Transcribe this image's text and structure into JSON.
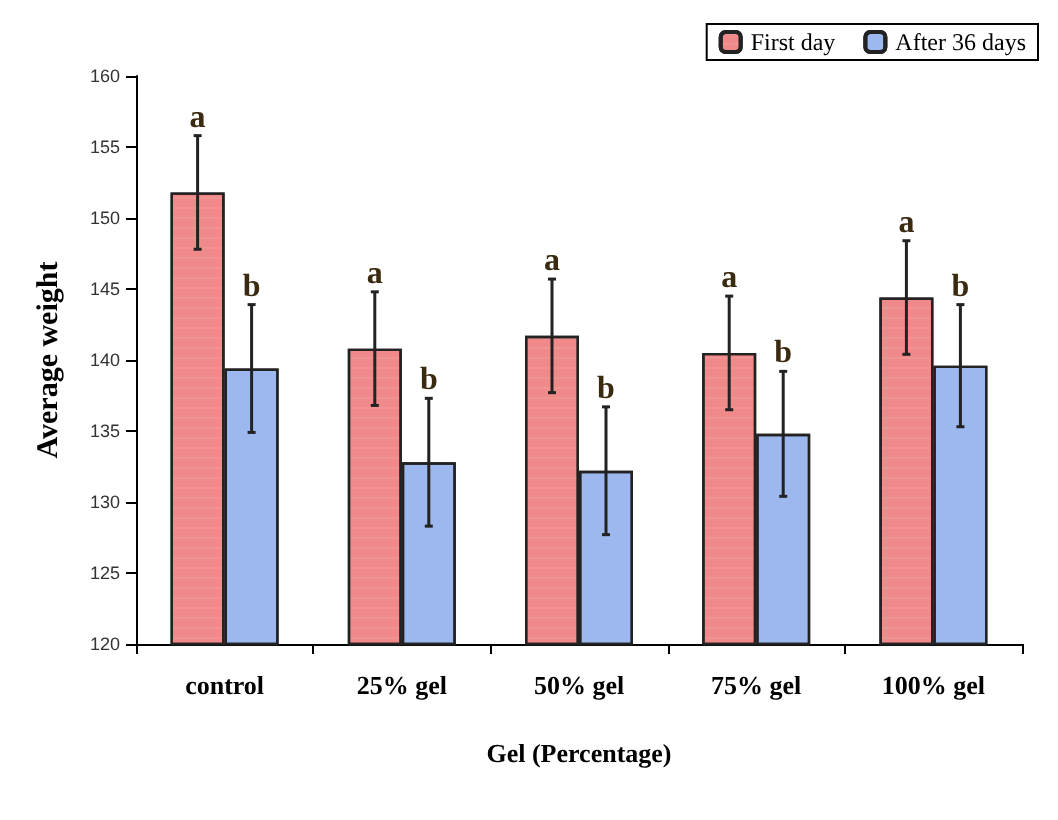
{
  "chart_data": {
    "type": "bar",
    "xlabel": "Gel (Percentage)",
    "ylabel": "Average weight",
    "categories": [
      "control",
      "25% gel",
      "50% gel",
      "75% gel",
      "100% gel"
    ],
    "series": [
      {
        "name": "First day",
        "color": "#f08a8a",
        "values": [
          151.8,
          140.8,
          141.7,
          140.5,
          144.4
        ],
        "errors": [
          4,
          4,
          4,
          4,
          4
        ]
      },
      {
        "name": "After 36 days",
        "color": "#9db8ee",
        "values": [
          139.4,
          132.8,
          132.2,
          134.8,
          139.6
        ],
        "errors": [
          4.5,
          4.5,
          4.5,
          4.4,
          4.3
        ]
      }
    ],
    "annotations": [
      "a",
      "b",
      "a",
      "b",
      "a",
      "b",
      "a",
      "b",
      "a",
      "b"
    ],
    "ylim": [
      120,
      160
    ],
    "yticks": [
      120,
      125,
      130,
      135,
      140,
      145,
      150,
      155,
      160
    ],
    "grid": false,
    "legend": "top right"
  }
}
